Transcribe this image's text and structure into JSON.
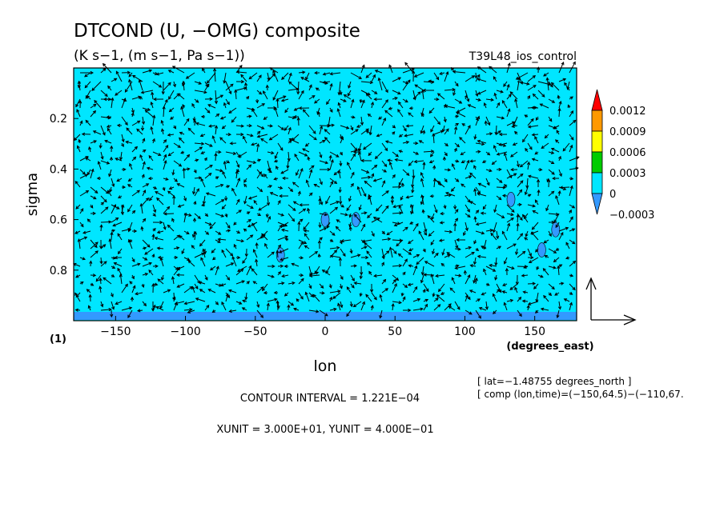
{
  "header": {
    "title": "DTCOND (U, −OMG) composite",
    "units": "(K s−1, (m s−1, Pa s−1))",
    "run": "T39L48_ios_control"
  },
  "axes": {
    "ylabel": "sigma",
    "xlabel": "lon",
    "xunits": "(degrees_east)",
    "panel_tag": "(1)"
  },
  "info": {
    "lat": "[ lat=−1.48755 degrees_north ]",
    "comp": "[ comp (lon,time)=(−150,64.5)−(−110,67.",
    "contour_interval": "CONTOUR INTERVAL = 1.221E−04",
    "units_line": "XUNIT = 3.000E+01, YUNIT = 4.000E−01"
  },
  "colors": {
    "background_field": "#00e6ff",
    "negative": "#3399ff",
    "level_0003": "#00cc00",
    "level_0006": "#ffff00",
    "level_0009": "#ff9900",
    "level_0012": "#ff0000"
  },
  "chart_data": {
    "type": "contour-vector",
    "title": "DTCOND (U, −OMG) composite",
    "xlabel": "lon",
    "ylabel": "sigma",
    "xlim": [
      -180,
      180
    ],
    "ylim": [
      1.0,
      0.0
    ],
    "x_ticks": [
      -150,
      -100,
      -50,
      0,
      50,
      100,
      150
    ],
    "x_tick_labels": [
      "−150",
      "−100",
      "−50",
      "0",
      "50",
      "100",
      "150"
    ],
    "y_ticks": [
      0.2,
      0.4,
      0.6,
      0.8
    ],
    "y_tick_labels": [
      "0.2",
      "0.4",
      "0.6",
      "0.8"
    ],
    "colorbar": {
      "labels": [
        "0.0012",
        "0.0009",
        "0.0006",
        "0.0003",
        "0",
        "−0.0003"
      ],
      "colors": [
        "#ff0000",
        "#ff9900",
        "#ffff00",
        "#00cc00",
        "#00e6ff",
        "#3399ff"
      ]
    },
    "negative_patches": [
      {
        "lon": 0,
        "sigma": 0.6
      },
      {
        "lon": 22,
        "sigma": 0.6
      },
      {
        "lon": -32,
        "sigma": 0.74
      },
      {
        "lon": 133,
        "sigma": 0.52
      },
      {
        "lon": 155,
        "sigma": 0.72
      },
      {
        "lon": 165,
        "sigma": 0.64
      }
    ],
    "reference_vector": {
      "xunit": 30,
      "yunit": 0.4
    }
  }
}
